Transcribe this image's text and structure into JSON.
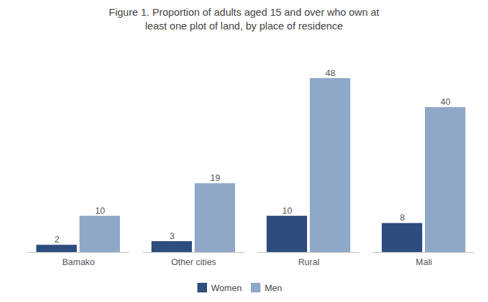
{
  "chart_data": {
    "type": "bar",
    "title": "Figure 1. Proportion of adults aged 15 and over who own at\nleast one plot of land, by place of residence",
    "categories": [
      "Bamako",
      "Other cities",
      "Rural",
      "Mali"
    ],
    "series": [
      {
        "name": "Women",
        "color": "#2E4C7E",
        "values": [
          2,
          3,
          10,
          8
        ]
      },
      {
        "name": "Men",
        "color": "#8FA8C8",
        "values": [
          10,
          19,
          48,
          40
        ]
      }
    ],
    "ylim": [
      0,
      55
    ],
    "tick_labels": "x",
    "data_labels": true,
    "grid": false,
    "legend": "bottom"
  }
}
